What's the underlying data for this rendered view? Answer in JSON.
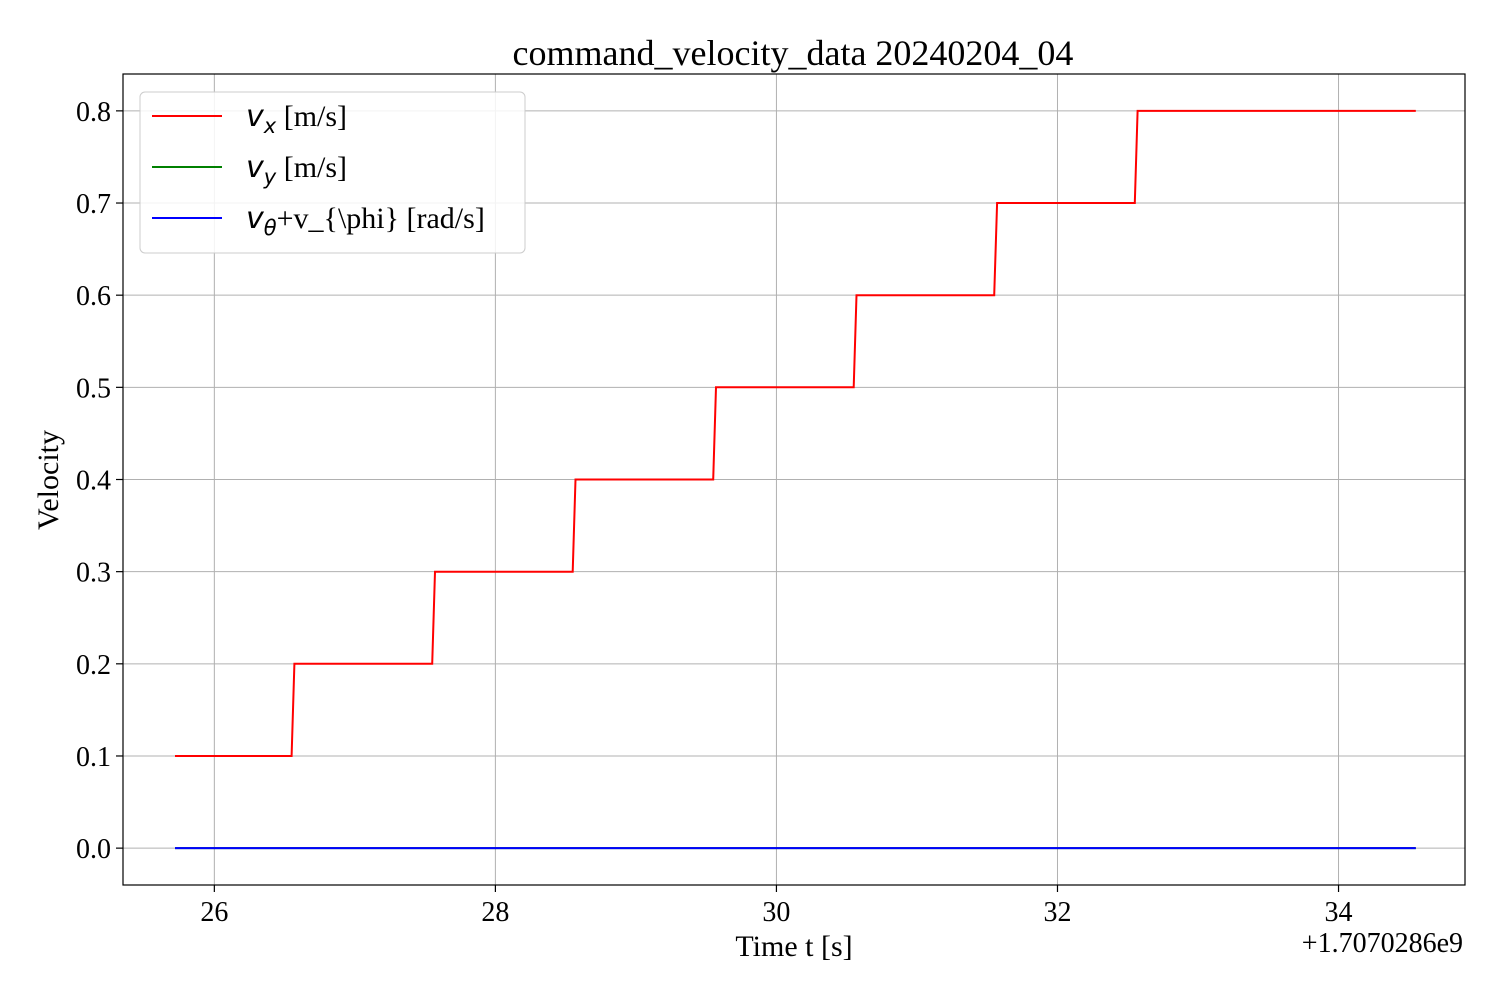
{
  "chart_data": {
    "type": "line",
    "title": "command_velocity_data 20240204_04",
    "xlabel": "Time t [s]",
    "ylabel": "Velocity",
    "x_offset_label": "+1.7070286e9",
    "xlim": [
      25.35,
      34.9
    ],
    "ylim": [
      -0.04,
      0.84
    ],
    "x_ticks": [
      26,
      28,
      30,
      32,
      34
    ],
    "x_tick_labels": [
      "26",
      "28",
      "30",
      "32",
      "34"
    ],
    "y_ticks": [
      0.0,
      0.1,
      0.2,
      0.3,
      0.4,
      0.5,
      0.6,
      0.7,
      0.8
    ],
    "y_tick_labels": [
      "0.0",
      "0.1",
      "0.2",
      "0.3",
      "0.4",
      "0.5",
      "0.6",
      "0.7",
      "0.8"
    ],
    "grid": true,
    "legend_placement": "top-left",
    "series": [
      {
        "name": "v_x [m/s]",
        "legend_main": "v",
        "legend_sub": "x",
        "legend_rest": " [m/s]",
        "color": "#ff0000",
        "x": [
          25.72,
          26.55,
          26.57,
          27.55,
          27.57,
          28.55,
          28.57,
          29.55,
          29.57,
          30.55,
          30.57,
          31.55,
          31.57,
          32.55,
          32.57,
          34.55
        ],
        "y": [
          0.1,
          0.1,
          0.2,
          0.2,
          0.3,
          0.3,
          0.4,
          0.4,
          0.5,
          0.5,
          0.6,
          0.6,
          0.7,
          0.7,
          0.8,
          0.8
        ]
      },
      {
        "name": "v_y [m/s]",
        "legend_main": "v",
        "legend_sub": "y",
        "legend_rest": " [m/s]",
        "color": "#008000",
        "x": [
          25.72,
          34.55
        ],
        "y": [
          0.0,
          0.0
        ]
      },
      {
        "name": "v_θ+v_{\\phi} [rad/s]",
        "legend_main": "v",
        "legend_sub": "θ",
        "legend_rest": "+v_{\\phi} [rad/s]",
        "color": "#0000ff",
        "x": [
          25.72,
          34.55
        ],
        "y": [
          0.0,
          0.0
        ]
      }
    ]
  }
}
